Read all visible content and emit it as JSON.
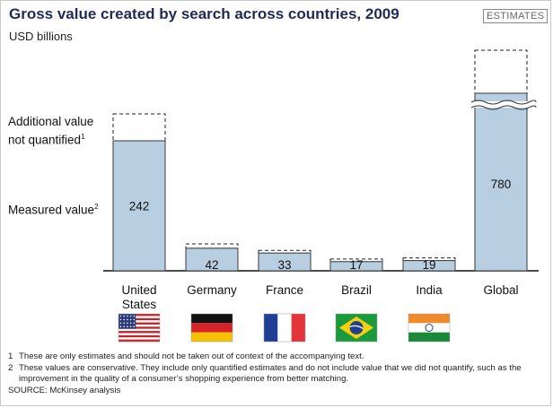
{
  "title": "Gross value created by search across countries, 2009",
  "unit": "USD billions",
  "badge": "ESTIMATES",
  "legend": {
    "additional": "Additional value not quantified",
    "additional_line1": "Additional value",
    "additional_line2": "not quantified",
    "additional_sup": "1",
    "measured": "Measured value",
    "measured_sup": "2"
  },
  "footnotes": [
    {
      "num": "1",
      "text": "These are only estimates and should not be taken out of context of the accompanying text."
    },
    {
      "num": "2",
      "text": "These values are conservative. They include only quantified estimates and do not include value that we did not quantify, such as the improvement in the quality of a consumer’s shopping experience from better matching."
    }
  ],
  "source": "SOURCE: McKinsey analysis",
  "colors": {
    "bar": "#b8cfe1",
    "bar_stroke": "#3a3a3a",
    "title": "#1f2a5a"
  },
  "chart_data": {
    "type": "bar",
    "title": "Gross value created by search across countries, 2009",
    "ylabel": "USD billions",
    "categories": [
      "United States",
      "Germany",
      "France",
      "Brazil",
      "India",
      "Global"
    ],
    "category_lines": [
      [
        "United",
        "States"
      ],
      [
        "Germany"
      ],
      [
        "France"
      ],
      [
        "Brazil"
      ],
      [
        "India"
      ],
      [
        "Global"
      ]
    ],
    "flags": [
      "us-flag-icon",
      "germany-flag-icon",
      "france-flag-icon",
      "brazil-flag-icon",
      "india-flag-icon",
      "global"
    ],
    "series": [
      {
        "name": "Measured value",
        "values": [
          242,
          42,
          33,
          17,
          19,
          780
        ]
      },
      {
        "name": "Additional value not quantified",
        "values": [
          50,
          8,
          5,
          3,
          3,
          null
        ]
      }
    ],
    "axis_break": {
      "category": "Global",
      "note": "broken axis"
    },
    "ylim": [
      0,
      300
    ],
    "grid": false,
    "legend_position": "left"
  }
}
